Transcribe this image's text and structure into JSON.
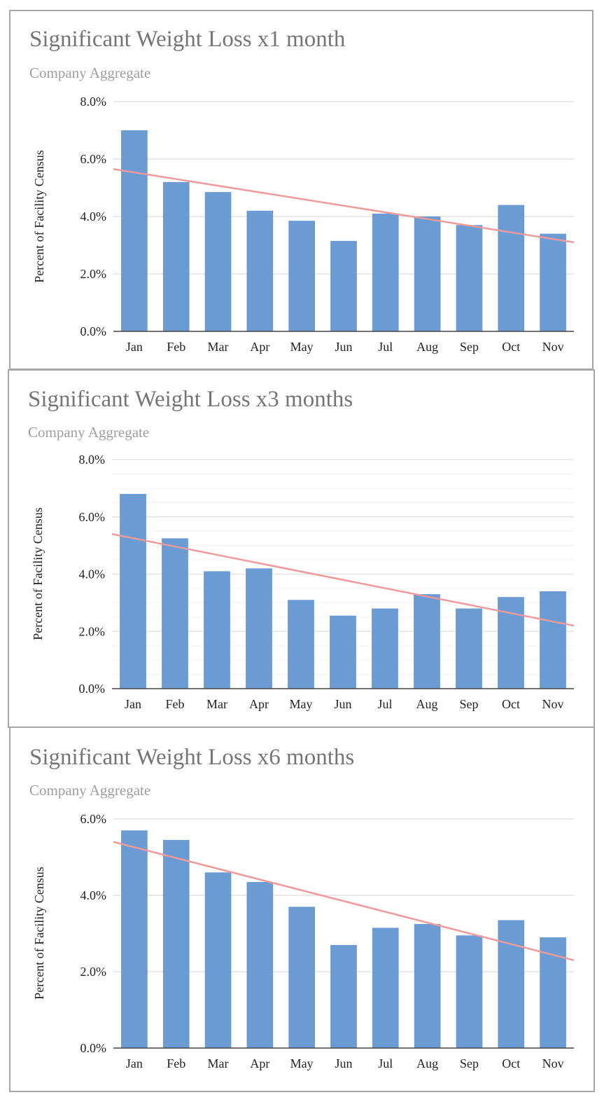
{
  "colors": {
    "bar": "#6a9bd3",
    "trend": "#ef9a9a",
    "grid": "#e3e3e3",
    "minor_grid": "#f0f0f0",
    "axis": "#444444"
  },
  "chart_data": [
    {
      "type": "bar",
      "title": "Significant Weight Loss x1 month",
      "subtitle": "Company Aggregate",
      "ylabel": "Percent of Facility Census",
      "xlabel": "",
      "categories": [
        "Jan",
        "Feb",
        "Mar",
        "Apr",
        "May",
        "Jun",
        "Jul",
        "Aug",
        "Sep",
        "Oct",
        "Nov"
      ],
      "values": [
        7.0,
        5.2,
        4.85,
        4.2,
        3.85,
        3.15,
        4.1,
        4.0,
        3.7,
        4.4,
        3.4
      ],
      "ylim": [
        0,
        8
      ],
      "yticks": [
        0,
        2,
        4,
        6,
        8
      ],
      "ytick_labels": [
        "0.0%",
        "2.0%",
        "4.0%",
        "6.0%",
        "8.0%"
      ],
      "minor_grid": false,
      "trendline": {
        "start": 5.65,
        "end": 3.1
      }
    },
    {
      "type": "bar",
      "title": "Significant Weight Loss x3 months",
      "subtitle": "Company Aggregate",
      "ylabel": "Percent of Facility Census",
      "xlabel": "",
      "categories": [
        "Jan",
        "Feb",
        "Mar",
        "Apr",
        "May",
        "Jun",
        "Jul",
        "Aug",
        "Sep",
        "Oct",
        "Nov"
      ],
      "values": [
        6.8,
        5.25,
        4.1,
        4.2,
        3.1,
        2.55,
        2.8,
        3.3,
        2.8,
        3.2,
        3.4
      ],
      "ylim": [
        0,
        8
      ],
      "yticks": [
        0,
        2,
        4,
        6,
        8
      ],
      "ytick_labels": [
        "0.0%",
        "2.0%",
        "4.0%",
        "6.0%",
        "8.0%"
      ],
      "minor_grid": true,
      "trendline": {
        "start": 5.4,
        "end": 2.2
      }
    },
    {
      "type": "bar",
      "title": "Significant Weight Loss x6 months",
      "subtitle": "Company Aggregate",
      "ylabel": "Percent of Facility Census",
      "xlabel": "",
      "categories": [
        "Jan",
        "Feb",
        "Mar",
        "Apr",
        "May",
        "Jun",
        "Jul",
        "Aug",
        "Sep",
        "Oct",
        "Nov"
      ],
      "values": [
        5.7,
        5.45,
        4.6,
        4.35,
        3.7,
        2.7,
        3.15,
        3.25,
        2.95,
        3.35,
        2.9
      ],
      "ylim": [
        0,
        6
      ],
      "yticks": [
        0,
        2,
        4,
        6
      ],
      "ytick_labels": [
        "0.0%",
        "2.0%",
        "4.0%",
        "6.0%"
      ],
      "minor_grid": false,
      "trendline": {
        "start": 5.4,
        "end": 2.3
      }
    }
  ]
}
